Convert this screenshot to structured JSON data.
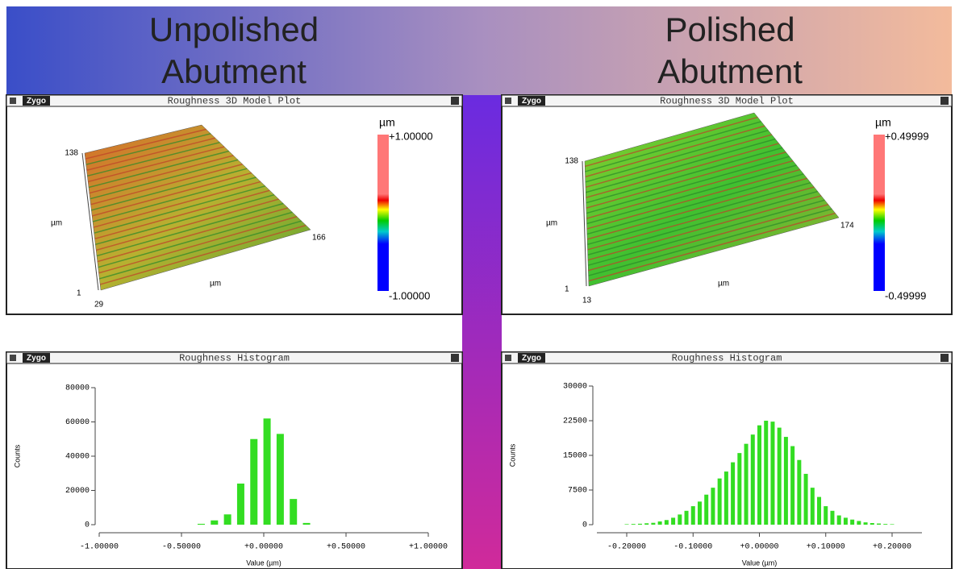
{
  "header": {
    "left_title": [
      "Unpolished",
      "Abutment"
    ],
    "right_title": [
      "Polished",
      "Abutment"
    ]
  },
  "surface_plots": [
    {
      "logo": "Zygo",
      "title": "Roughness 3D Model Plot",
      "unit": "µm",
      "scale_max": "+1.00000",
      "scale_min": "-1.00000",
      "y_max": 138,
      "y_label": "µm",
      "x_max": 166,
      "x_label": "µm",
      "y_min": 1,
      "x_min": 29
    },
    {
      "logo": "Zygo",
      "title": "Roughness 3D Model Plot",
      "unit": "µm",
      "scale_max": "+0.49999",
      "scale_min": "-0.49999",
      "y_max": 138,
      "y_label": "µm",
      "x_max": 174,
      "x_label": "µm",
      "y_min": 1,
      "x_min": 13
    }
  ],
  "chart_data": [
    {
      "type": "bar",
      "logo": "Zygo",
      "title": "Roughness Histogram",
      "x_label": "Value (µm)",
      "y_label": "Counts",
      "color": "#33dd22",
      "x": [
        -0.38,
        -0.3,
        -0.22,
        -0.14,
        -0.06,
        0.02,
        0.1,
        0.18,
        0.26
      ],
      "values": [
        500,
        2500,
        6000,
        24000,
        50000,
        62000,
        53000,
        15000,
        1000
      ],
      "xlim": [
        -1,
        1
      ],
      "xticks": [
        {
          "value": -1,
          "label": "-1.00000"
        },
        {
          "value": -0.5,
          "label": "-0.50000"
        },
        {
          "value": 0,
          "label": "+0.00000"
        },
        {
          "value": 0.5,
          "label": "+0.50000"
        },
        {
          "value": 1,
          "label": "+1.00000"
        }
      ],
      "ylim": [
        0,
        80000
      ],
      "yticks": [
        0,
        20000,
        40000,
        60000,
        80000
      ]
    },
    {
      "type": "bar",
      "logo": "Zygo",
      "title": "Roughness Histogram",
      "x_label": "Value (µm)",
      "y_label": "Counts",
      "color": "#33dd22",
      "x": [
        -0.2,
        -0.19,
        -0.18,
        -0.17,
        -0.16,
        -0.15,
        -0.14,
        -0.13,
        -0.12,
        -0.11,
        -0.1,
        -0.09,
        -0.08,
        -0.07,
        -0.06,
        -0.05,
        -0.04,
        -0.03,
        -0.02,
        -0.01,
        0.0,
        0.01,
        0.02,
        0.03,
        0.04,
        0.05,
        0.06,
        0.07,
        0.08,
        0.09,
        0.1,
        0.11,
        0.12,
        0.13,
        0.14,
        0.15,
        0.16,
        0.17,
        0.18,
        0.19,
        0.2
      ],
      "values": [
        100,
        150,
        200,
        300,
        400,
        700,
        1000,
        1500,
        2200,
        3000,
        4000,
        5000,
        6500,
        8000,
        10000,
        11500,
        13500,
        15500,
        17500,
        19500,
        21500,
        22500,
        22300,
        21000,
        19000,
        17000,
        14000,
        11000,
        8000,
        6000,
        4000,
        3000,
        2000,
        1500,
        1100,
        800,
        500,
        350,
        250,
        150,
        100
      ],
      "xlim": [
        -0.245,
        0.245
      ],
      "xticks": [
        {
          "value": -0.2,
          "label": "-0.20000"
        },
        {
          "value": -0.1,
          "label": "-0.10000"
        },
        {
          "value": 0,
          "label": "+0.00000"
        },
        {
          "value": 0.1,
          "label": "+0.10000"
        },
        {
          "value": 0.2,
          "label": "+0.20000"
        }
      ],
      "ylim": [
        0,
        30000
      ],
      "yticks": [
        0,
        7500,
        15000,
        22500,
        30000
      ]
    }
  ]
}
